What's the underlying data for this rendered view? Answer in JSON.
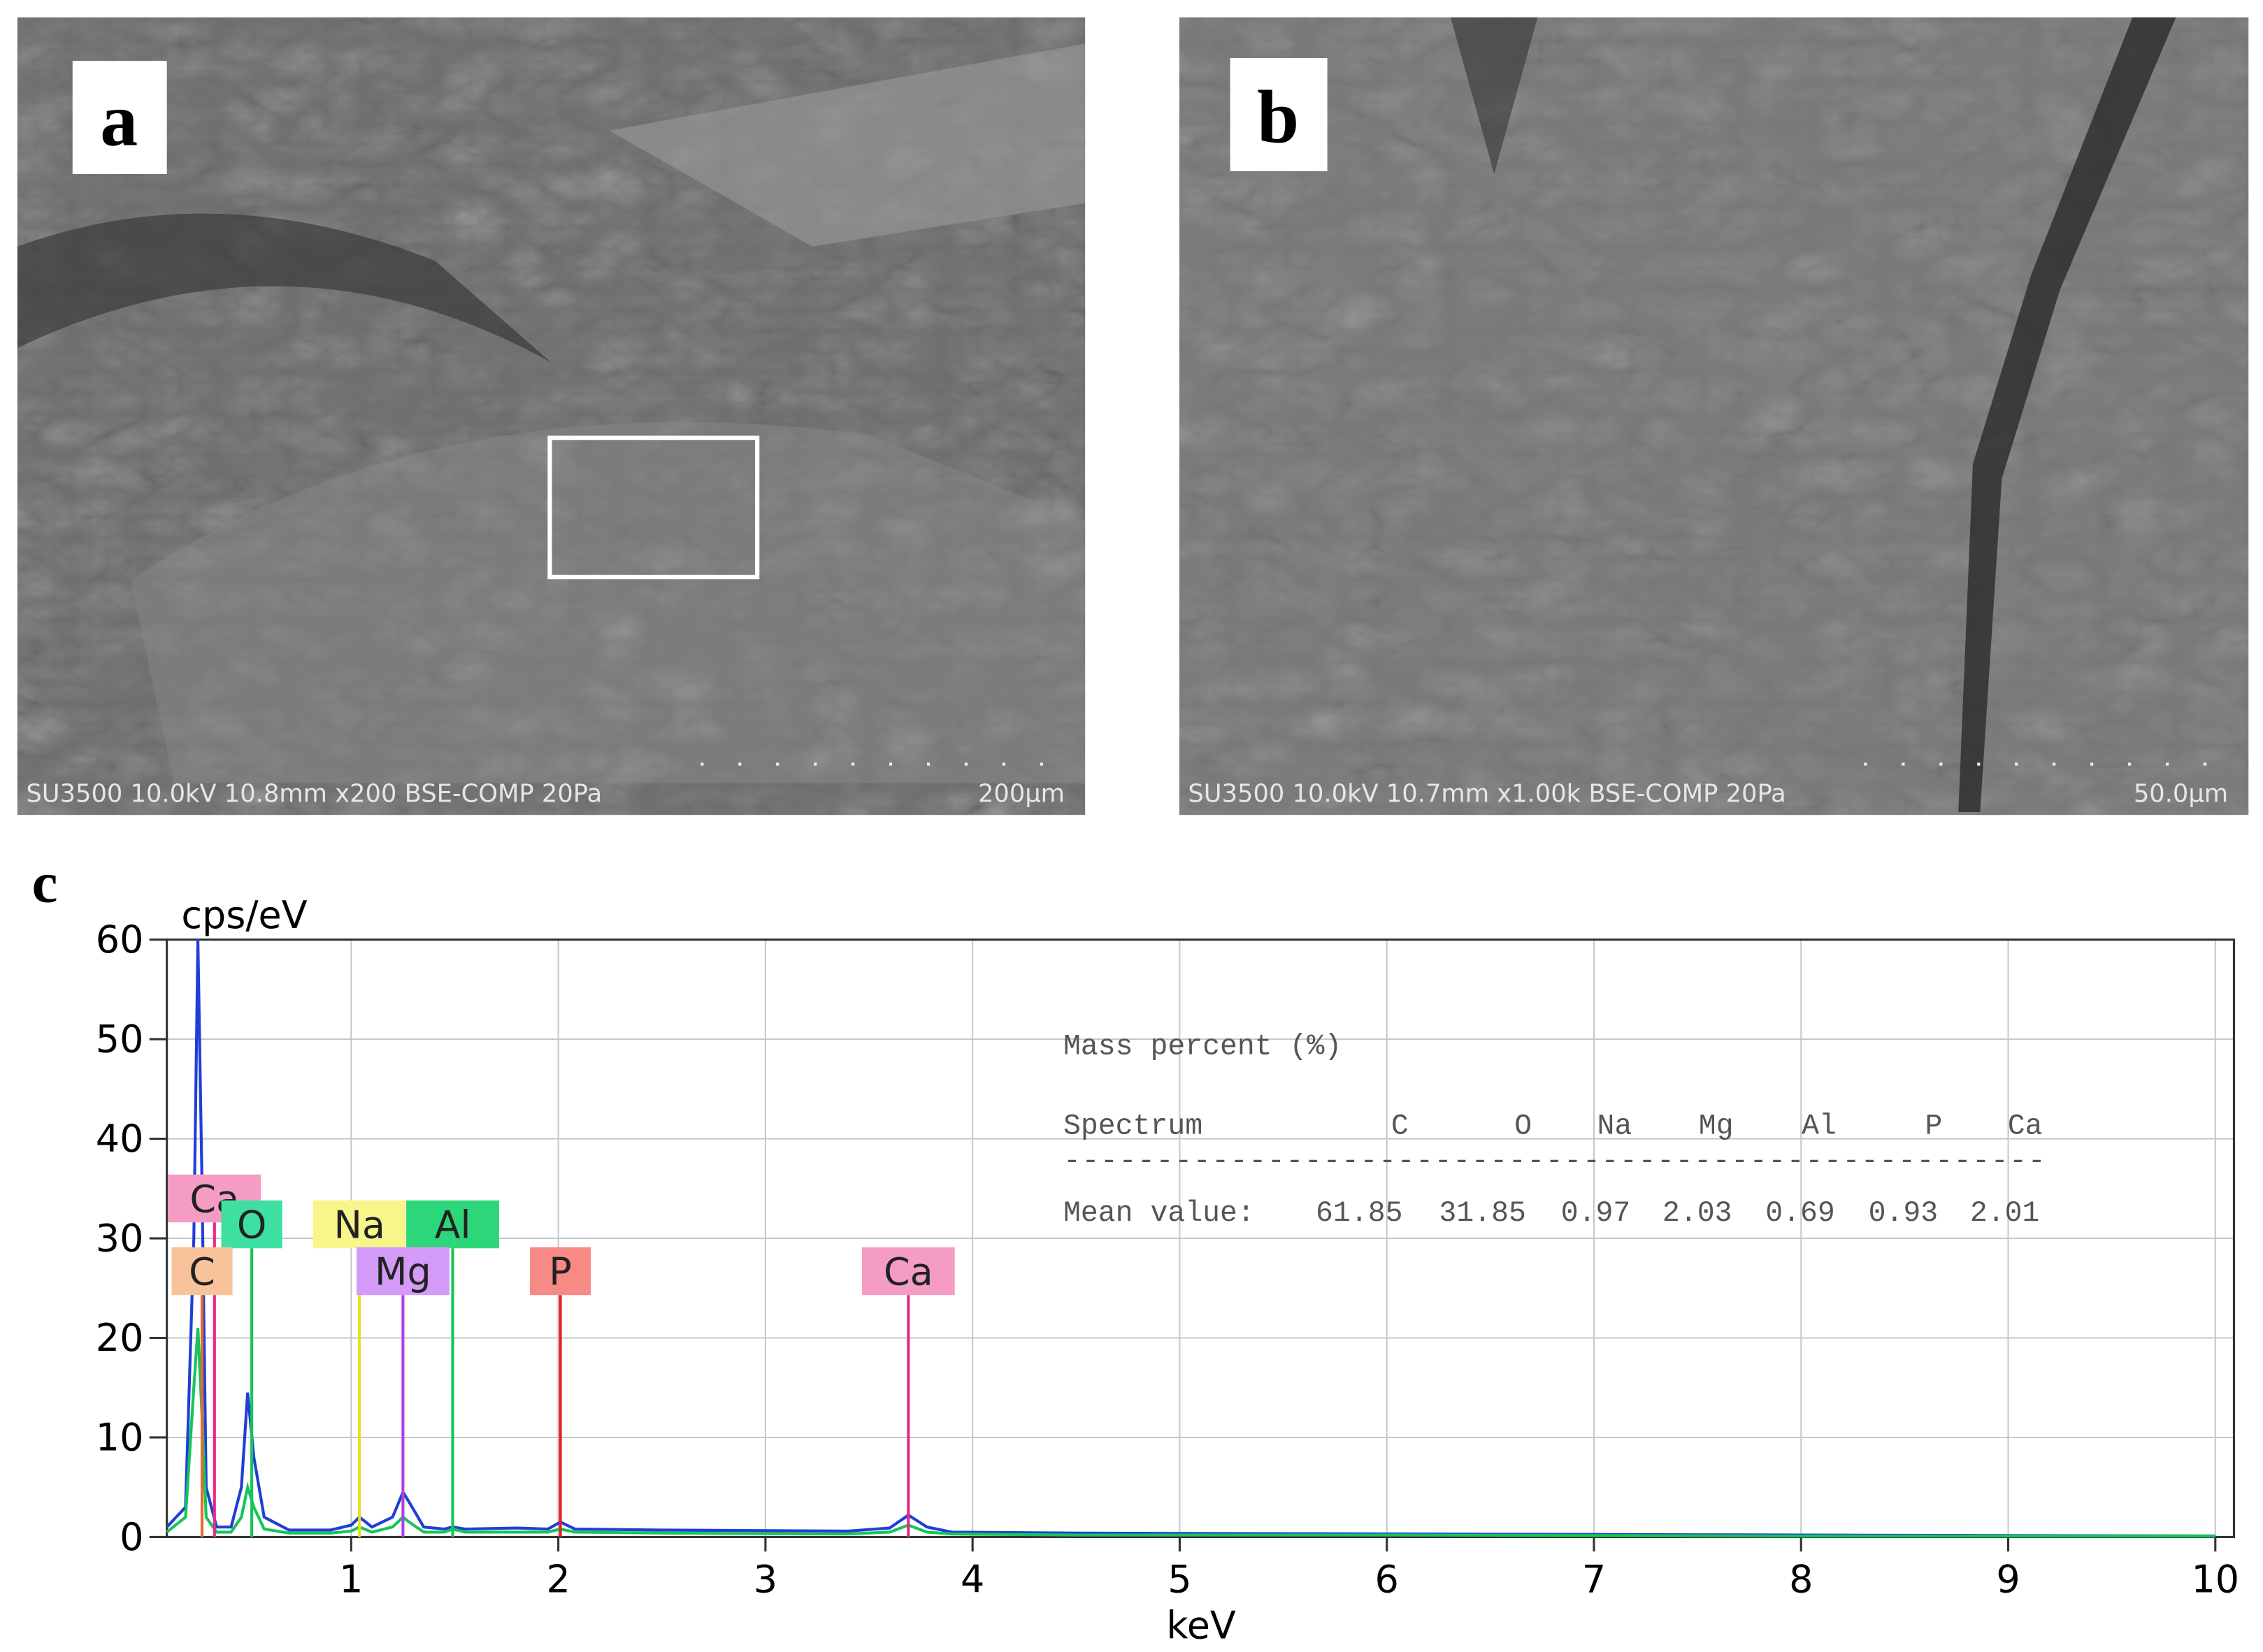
{
  "panels": [
    {
      "label": "a",
      "caption": "SU3500 10.0kV 10.8mm x200 BSE-COMP 20Pa",
      "scale": "200µm"
    },
    {
      "label": "b",
      "caption": "SU3500 10.0kV 10.7mm x1.00k BSE-COMP 20Pa",
      "scale": "50.0µm"
    }
  ],
  "chart_data": {
    "type": "line",
    "panel_label": "c",
    "y_label": "cps/eV",
    "x_label": "keV",
    "xlim": [
      0.11,
      10.09
    ],
    "xticks": [
      1,
      2,
      3,
      4,
      5,
      6,
      7,
      8,
      9,
      10
    ],
    "ylim": [
      0,
      60
    ],
    "yticks": [
      0,
      10,
      20,
      30,
      40,
      50,
      60
    ],
    "grid": true,
    "x": [
      0.11,
      0.2,
      0.24,
      0.26,
      0.28,
      0.3,
      0.35,
      0.42,
      0.47,
      0.5,
      0.53,
      0.58,
      0.7,
      0.9,
      1.0,
      1.04,
      1.1,
      1.2,
      1.25,
      1.28,
      1.35,
      1.45,
      1.49,
      1.55,
      1.8,
      1.95,
      2.01,
      2.08,
      2.5,
      3.4,
      3.6,
      3.69,
      3.78,
      3.9,
      4.5,
      6,
      8,
      10
    ],
    "series": [
      {
        "color": "#1f3fd6",
        "values": [
          1,
          3,
          30,
          60,
          35,
          5,
          1,
          1,
          5,
          14.5,
          8,
          2,
          0.7,
          0.7,
          1.2,
          2,
          1,
          2,
          4.5,
          3.5,
          1,
          0.8,
          1,
          0.8,
          0.9,
          0.8,
          1.5,
          0.8,
          0.7,
          0.6,
          0.9,
          2.2,
          1,
          0.5,
          0.4,
          0.3,
          0.2,
          0.1
        ]
      },
      {
        "color": "#17c45a",
        "values": [
          0.5,
          2,
          15,
          21,
          12,
          2,
          0.5,
          0.5,
          2,
          5,
          3,
          0.8,
          0.4,
          0.4,
          0.6,
          1,
          0.5,
          1,
          2,
          1.5,
          0.5,
          0.5,
          0.8,
          0.5,
          0.5,
          0.5,
          0.8,
          0.5,
          0.4,
          0.3,
          0.5,
          1.2,
          0.5,
          0.3,
          0.2,
          0.2,
          0.1,
          0.1
        ]
      }
    ],
    "markers": [
      {
        "label": "Ca",
        "energy": 0.34,
        "height": 31.6,
        "color": "#e8288a",
        "box_color": "#f59cc4"
      },
      {
        "label": "O",
        "energy": 0.52,
        "height": 29,
        "color": "#17c45a",
        "box_color": "#3de0a0"
      },
      {
        "label": "Na",
        "energy": 1.04,
        "height": 29,
        "color": "#e8e020",
        "box_color": "#f8f58a"
      },
      {
        "label": "Al",
        "energy": 1.49,
        "height": 29,
        "color": "#17c45a",
        "box_color": "#2ed67a"
      },
      {
        "label": "C",
        "energy": 0.28,
        "height": 24.3,
        "color": "#e86a2e",
        "box_color": "#f8c39a"
      },
      {
        "label": "Mg",
        "energy": 1.25,
        "height": 24.3,
        "color": "#b040e0",
        "box_color": "#d49af8"
      },
      {
        "label": "P",
        "energy": 2.01,
        "height": 24.3,
        "color": "#e82020",
        "box_color": "#f88a86"
      },
      {
        "label": "Ca",
        "energy": 3.69,
        "height": 24.3,
        "color": "#e8288a",
        "box_color": "#f59cc4"
      }
    ],
    "table": {
      "title": "Mass percent (%)",
      "header": [
        "Spectrum",
        "C",
        "O",
        "Na",
        "Mg",
        "Al",
        "P",
        "Ca"
      ],
      "separator": "-----------------------------------------------------",
      "row": [
        "Mean value:",
        "61.85",
        "31.85",
        "0.97",
        "2.03",
        "0.69",
        "0.93",
        "2.01"
      ]
    }
  }
}
